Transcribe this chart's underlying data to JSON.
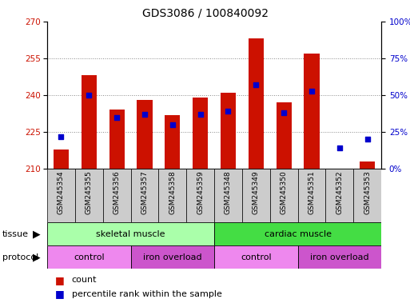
{
  "title": "GDS3086 / 100840092",
  "samples": [
    "GSM245354",
    "GSM245355",
    "GSM245356",
    "GSM245357",
    "GSM245358",
    "GSM245359",
    "GSM245348",
    "GSM245349",
    "GSM245350",
    "GSM245351",
    "GSM245352",
    "GSM245353"
  ],
  "count_values": [
    218,
    248,
    234,
    238,
    232,
    239,
    241,
    263,
    237,
    257,
    209,
    213
  ],
  "percentile_values": [
    22,
    50,
    35,
    37,
    30,
    37,
    39,
    57,
    38,
    53,
    14,
    20
  ],
  "ylim_left": [
    210,
    270
  ],
  "ylim_right": [
    0,
    100
  ],
  "yticks_left": [
    210,
    225,
    240,
    255,
    270
  ],
  "yticks_right": [
    0,
    25,
    50,
    75,
    100
  ],
  "bar_color": "#cc1100",
  "dot_color": "#0000cc",
  "tissue_groups": [
    {
      "label": "skeletal muscle",
      "start": 0,
      "end": 6,
      "color": "#aaffaa"
    },
    {
      "label": "cardiac muscle",
      "start": 6,
      "end": 12,
      "color": "#44dd44"
    }
  ],
  "protocol_groups": [
    {
      "label": "control",
      "start": 0,
      "end": 3,
      "color": "#ee88ee"
    },
    {
      "label": "iron overload",
      "start": 3,
      "end": 6,
      "color": "#cc55cc"
    },
    {
      "label": "control",
      "start": 6,
      "end": 9,
      "color": "#ee88ee"
    },
    {
      "label": "iron overload",
      "start": 9,
      "end": 12,
      "color": "#cc55cc"
    }
  ],
  "legend_count_label": "count",
  "legend_percentile_label": "percentile rank within the sample",
  "tissue_label": "tissue",
  "protocol_label": "protocol",
  "left_axis_color": "#cc1100",
  "right_axis_color": "#0000cc",
  "grid_color": "#888888",
  "bar_bottom": 210,
  "xtick_bg_color": "#cccccc",
  "fig_width": 5.13,
  "fig_height": 3.84,
  "dpi": 100
}
